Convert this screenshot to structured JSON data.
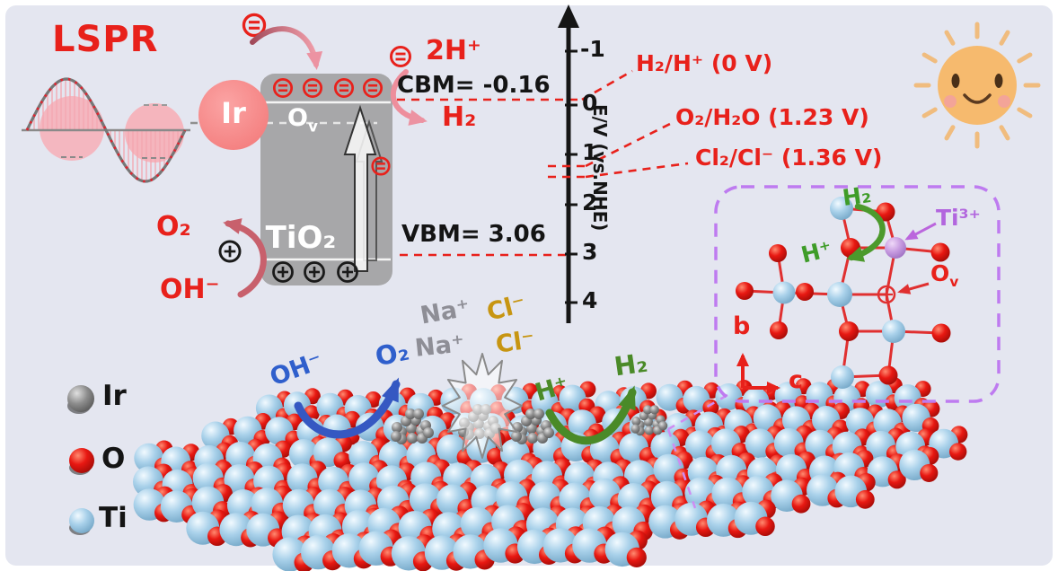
{
  "lspr": {
    "label": "LSPR"
  },
  "band_diagram": {
    "ir_label": "Ir",
    "tio2": "TiO₂",
    "ov_main": "O",
    "ov_sub": "v",
    "cbm": "CBM= -0.16",
    "vbm": "VBM= 3.06",
    "two_h_plus": "2H⁺",
    "h2_out": "H₂",
    "o2_out": "O₂",
    "oh_in": "OH⁻"
  },
  "energy_axis": {
    "axis_label": "E/V (vs.NHE)",
    "ticks": [
      "-1",
      "0",
      "1",
      "2",
      "3",
      "4"
    ],
    "levels": [
      {
        "label": "H₂/H⁺ (0 V)"
      },
      {
        "label": "O₂/H₂O (1.23 V)"
      },
      {
        "label": "Cl₂/Cl⁻ (1.36 V)"
      }
    ]
  },
  "inset": {
    "h2": "H₂",
    "h_plus": "H⁺",
    "ti3_plus": "Ti³⁺",
    "ov_main": "O",
    "ov_sub": "v",
    "axis_b": "b",
    "axis_c": "c"
  },
  "solution": {
    "oh": "OH⁻",
    "o2": "O₂",
    "na_1": "Na⁺",
    "na_2": "Na⁺",
    "cl_1": "Cl⁻",
    "cl_2": "Cl⁻",
    "h_plus": "H⁺",
    "h2": "H₂"
  },
  "legend": {
    "items": [
      {
        "label": "Ir"
      },
      {
        "label": "O"
      },
      {
        "label": "Ti"
      }
    ]
  },
  "colors": {
    "background": "#E4E6F0",
    "accent_red": "#E8211B",
    "band_gray": "#A7A7A9",
    "ir_particle_pink": "#F78585",
    "ti_blue": "#A9D1EA",
    "o_red": "#E81812",
    "ir_cluster_gray": "#8C8C8C",
    "ti3_purple": "#C79BE0",
    "inset_border_purple": "#BE7BF0",
    "her_green": "#4A8A28",
    "oer_blue": "#3558C2",
    "cl_gold": "#C79511",
    "na_gray": "#8E8E96",
    "sun_orange": "#F6BA6E"
  }
}
